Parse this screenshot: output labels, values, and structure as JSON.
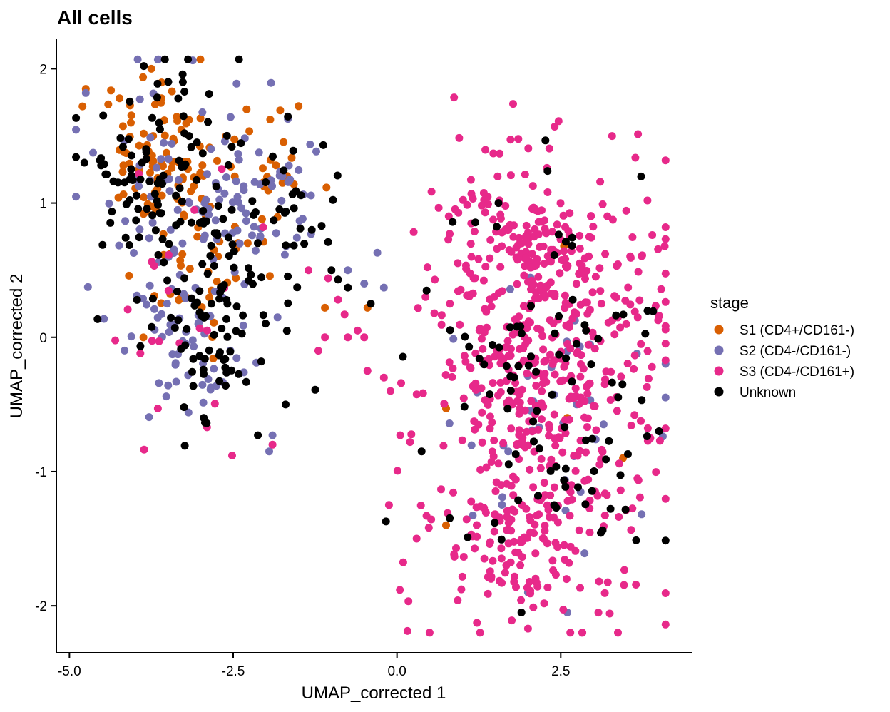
{
  "chart_data": {
    "type": "scatter",
    "title": "All cells",
    "xlabel": "UMAP_corrected 1",
    "ylabel": "UMAP_corrected 2",
    "xlim": [
      -5.2,
      4.5
    ],
    "ylim": [
      -2.35,
      2.22
    ],
    "x_ticks": [
      -5.0,
      -2.5,
      0.0,
      2.5
    ],
    "x_tick_labels": [
      "-5.0",
      "-2.5",
      "0.0",
      "2.5"
    ],
    "y_ticks": [
      2,
      1,
      0,
      -1,
      -2
    ],
    "y_tick_labels": [
      "2",
      "1",
      "0",
      "-1",
      "-2"
    ],
    "grid": false,
    "legend": {
      "title": "stage",
      "placement": "right"
    },
    "series": [
      {
        "name": "S1 (CD4+/CD161-)",
        "color": "#D95F02",
        "clusters": [
          {
            "cx": -3.7,
            "cy": 1.35,
            "sx": 0.45,
            "sy": 0.3,
            "n": 75
          },
          {
            "cx": -3.0,
            "cy": 0.75,
            "sx": 0.45,
            "sy": 0.35,
            "n": 55
          },
          {
            "cx": -2.0,
            "cy": 1.35,
            "sx": 0.4,
            "sy": 0.2,
            "n": 20
          }
        ],
        "points": [
          [
            -3.75,
            2.0
          ],
          [
            -4.75,
            1.85
          ],
          [
            -4.8,
            1.72
          ],
          [
            -0.45,
            0.22
          ],
          [
            -1.1,
            0.22
          ],
          [
            0.75,
            -0.53
          ],
          [
            2.55,
            0.68
          ],
          [
            3.45,
            -0.9
          ],
          [
            0.75,
            -1.4
          ],
          [
            2.6,
            -0.6
          ]
        ]
      },
      {
        "name": "S2 (CD4-/CD161-)",
        "color": "#7570B3",
        "clusters": [
          {
            "cx": -3.2,
            "cy": 0.8,
            "sx": 0.7,
            "sy": 0.55,
            "n": 110
          },
          {
            "cx": -2.0,
            "cy": 1.1,
            "sx": 0.45,
            "sy": 0.3,
            "n": 35
          },
          {
            "cx": -3.3,
            "cy": -0.2,
            "sx": 0.45,
            "sy": 0.2,
            "n": 30
          },
          {
            "cx": 2.3,
            "cy": -0.6,
            "sx": 0.85,
            "sy": 0.75,
            "n": 40
          }
        ],
        "points": [
          [
            -4.75,
            1.82
          ],
          [
            -1.9,
            -0.73
          ],
          [
            -1.95,
            -0.85
          ],
          [
            -0.75,
            0.5
          ],
          [
            -0.5,
            0.4
          ],
          [
            -0.3,
            0.63
          ],
          [
            -0.2,
            0.37
          ],
          [
            2.6,
            -2.05
          ],
          [
            2.0,
            -1.9
          ]
        ]
      },
      {
        "name": "S3 (CD4-/CD161+)",
        "color": "#E7298A",
        "clusters": [
          {
            "cx": 2.2,
            "cy": -0.3,
            "sx": 0.95,
            "sy": 0.8,
            "n": 520
          },
          {
            "cx": 2.0,
            "cy": 0.7,
            "sx": 0.65,
            "sy": 0.25,
            "n": 110
          },
          {
            "cx": 2.0,
            "cy": -1.6,
            "sx": 0.55,
            "sy": 0.25,
            "n": 80
          },
          {
            "cx": -3.2,
            "cy": 0.2,
            "sx": 0.55,
            "sy": 0.5,
            "n": 20
          }
        ],
        "points": [
          [
            -1.2,
            -0.1
          ],
          [
            -1.1,
            0.0
          ],
          [
            -0.75,
            0.0
          ],
          [
            -0.5,
            0.0
          ],
          [
            -0.45,
            -0.25
          ],
          [
            -0.2,
            -0.3
          ],
          [
            -0.1,
            -0.4
          ],
          [
            0.05,
            -0.73
          ],
          [
            0.2,
            -0.78
          ],
          [
            -0.9,
            0.28
          ],
          [
            -0.8,
            0.17
          ],
          [
            -0.6,
            0.05
          ],
          [
            -1.9,
            -0.8
          ],
          [
            -2.9,
            -0.67
          ],
          [
            -3.65,
            -0.53
          ],
          [
            -1.35,
            0.5
          ],
          [
            -1.05,
            0.44
          ],
          [
            0.3,
            -1.5
          ],
          [
            2.0,
            -2.17
          ],
          [
            1.6,
            -1.83
          ],
          [
            2.3,
            1.08
          ]
        ]
      },
      {
        "name": "Unknown",
        "color": "#000000",
        "clusters": [
          {
            "cx": -3.5,
            "cy": 1.1,
            "sx": 0.65,
            "sy": 0.5,
            "n": 115
          },
          {
            "cx": -2.7,
            "cy": 0.1,
            "sx": 0.55,
            "sy": 0.4,
            "n": 70
          },
          {
            "cx": -1.8,
            "cy": 0.9,
            "sx": 0.45,
            "sy": 0.3,
            "n": 30
          },
          {
            "cx": 2.3,
            "cy": -0.4,
            "sx": 0.9,
            "sy": 0.75,
            "n": 95
          }
        ],
        "points": [
          [
            -1.3,
            0.8
          ],
          [
            -1.15,
            0.83
          ],
          [
            -1.0,
            0.5
          ],
          [
            -0.9,
            0.43
          ],
          [
            -0.75,
            0.37
          ],
          [
            -0.4,
            0.25
          ],
          [
            -1.7,
            -0.5
          ],
          [
            -2.95,
            -0.6
          ],
          [
            -3.25,
            -0.52
          ],
          [
            1.55,
            1.0
          ],
          [
            1.9,
            -2.05
          ],
          [
            2.4,
            -1.25
          ],
          [
            4.0,
            -0.7
          ]
        ]
      }
    ]
  }
}
